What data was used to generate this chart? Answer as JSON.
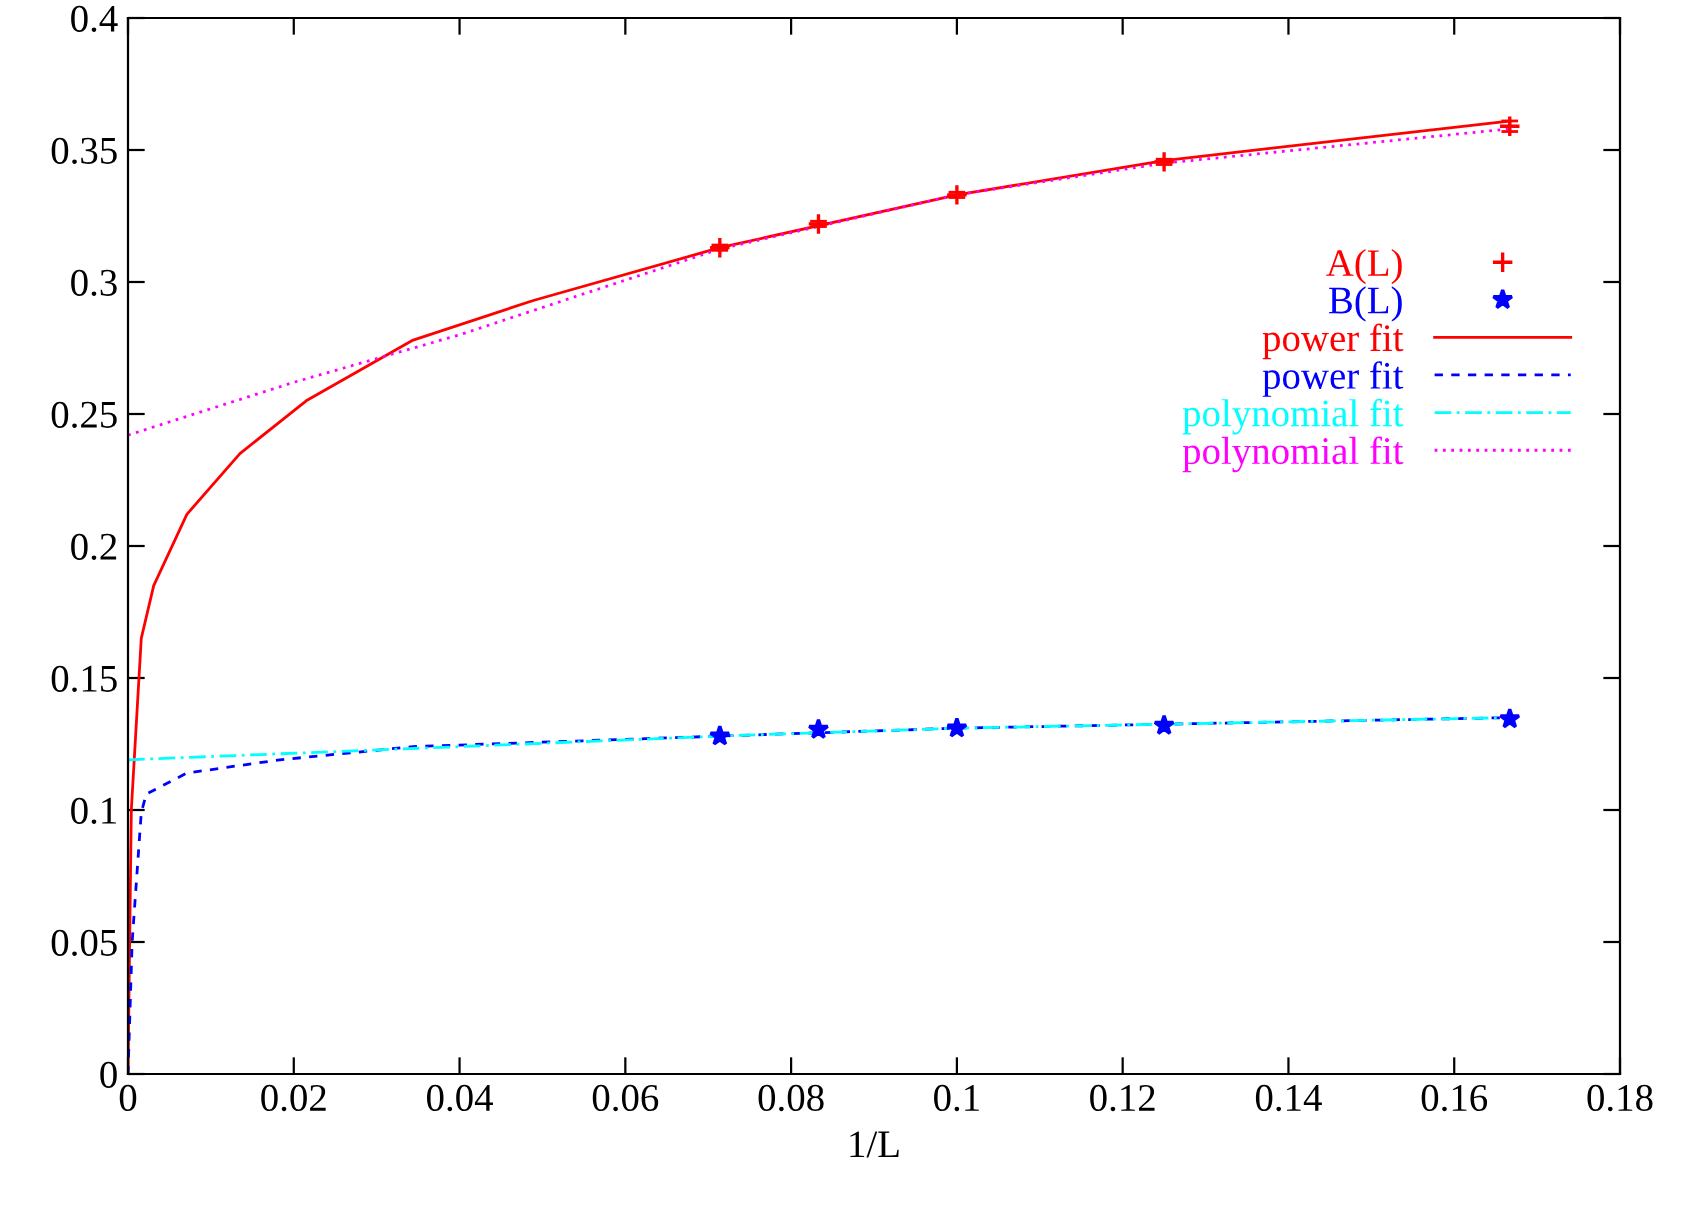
{
  "chart_data": {
    "type": "line",
    "xlabel": "1/L",
    "xlim": [
      0,
      0.18
    ],
    "ylim": [
      0,
      0.4
    ],
    "xticks": [
      0,
      0.02,
      0.04,
      0.06,
      0.08,
      0.1,
      0.12,
      0.14,
      0.16,
      0.18
    ],
    "yticks": [
      0,
      0.05,
      0.1,
      0.15,
      0.2,
      0.25,
      0.3,
      0.35,
      0.4
    ],
    "grid": false,
    "legend": "right",
    "series": [
      {
        "name": "A(L)",
        "type": "scatter",
        "color": "#ff0000",
        "marker": "cross",
        "x": [
          0.0714,
          0.0833,
          0.1,
          0.125,
          0.1667
        ],
        "values": [
          0.313,
          0.322,
          0.333,
          0.3455,
          0.359
        ],
        "errors": [
          0.001,
          0.001,
          0.001,
          0.001,
          0.002
        ]
      },
      {
        "name": "B(L)",
        "type": "scatter",
        "color": "#0000ff",
        "marker": "star",
        "x": [
          0.0714,
          0.0833,
          0.1,
          0.125,
          0.1667
        ],
        "values": [
          0.128,
          0.1305,
          0.131,
          0.132,
          0.1345
        ]
      },
      {
        "name": "power fit",
        "color": "#ff0000",
        "line_style": "solid",
        "x": [
          0,
          0.0004,
          0.0016,
          0.0031,
          0.0071,
          0.0135,
          0.0215,
          0.0344,
          0.0489,
          0.0714,
          0.1,
          0.125,
          0.1667
        ],
        "values": [
          0,
          0.1,
          0.165,
          0.185,
          0.212,
          0.235,
          0.255,
          0.278,
          0.293,
          0.313,
          0.333,
          0.346,
          0.361
        ]
      },
      {
        "name": "power fit",
        "color": "#0000ff",
        "line_style": "dashed",
        "x": [
          0,
          0.0005,
          0.0016,
          0.0022,
          0.0071,
          0.0183,
          0.0344,
          0.0714,
          0.1,
          0.1667
        ],
        "values": [
          0,
          0.05,
          0.099,
          0.106,
          0.114,
          0.119,
          0.124,
          0.128,
          0.131,
          0.135
        ]
      },
      {
        "name": "polynomial fit",
        "color": "#00ffff",
        "line_style": "dashdot",
        "x": [
          0,
          0.04,
          0.0714,
          0.1,
          0.1667
        ],
        "values": [
          0.119,
          0.124,
          0.128,
          0.131,
          0.135
        ]
      },
      {
        "name": "polynomial fit",
        "color": "#ff00ff",
        "line_style": "dotted",
        "x": [
          0,
          0.02,
          0.04,
          0.0714,
          0.1,
          0.125,
          0.1667
        ],
        "values": [
          0.242,
          0.262,
          0.28,
          0.3125,
          0.333,
          0.345,
          0.358
        ]
      }
    ]
  }
}
